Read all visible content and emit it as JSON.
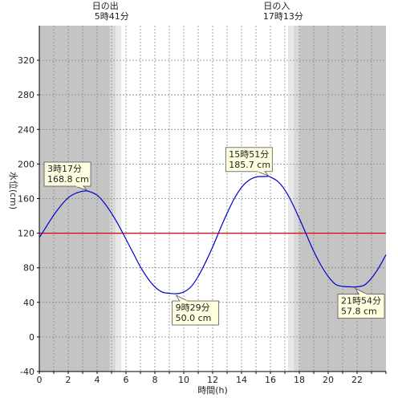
{
  "chart_data": {
    "type": "line",
    "xlabel": "時間(h)",
    "ylabel": "水位(cm)",
    "xlim": [
      0,
      24
    ],
    "ylim": [
      -40,
      360
    ],
    "x_ticks": [
      0,
      2,
      4,
      6,
      8,
      10,
      12,
      14,
      16,
      18,
      20,
      22
    ],
    "y_ticks": [
      -40,
      0,
      40,
      80,
      120,
      160,
      200,
      240,
      280,
      320
    ],
    "grid": true,
    "reference_line": {
      "y": 120,
      "color": "#e00000"
    },
    "series": [
      {
        "color": "#0000cc",
        "x": [
          0,
          0.5,
          1,
          1.5,
          2,
          2.5,
          3,
          3.28,
          3.5,
          4,
          4.5,
          5,
          5.5,
          6,
          6.5,
          7,
          7.5,
          8,
          8.5,
          9,
          9.48,
          10,
          10.5,
          11,
          11.5,
          12,
          12.5,
          13,
          13.5,
          14,
          14.5,
          15,
          15.5,
          15.85,
          16,
          16.5,
          17,
          17.5,
          18,
          18.5,
          19,
          19.5,
          20,
          20.5,
          21,
          21.5,
          21.9,
          22.5,
          23,
          23.5,
          24
        ],
        "y": [
          115,
          128,
          141,
          152,
          161,
          166,
          168.5,
          168.8,
          168,
          164,
          155,
          143,
          129,
          113,
          97,
          81,
          68,
          58,
          52,
          50.5,
          50,
          52,
          58,
          70,
          86,
          104,
          124,
          143,
          160,
          173,
          181,
          185,
          185.5,
          185.7,
          185,
          180,
          170,
          155,
          137,
          118,
          99,
          83,
          70,
          61,
          58.5,
          58,
          57.8,
          60,
          68,
          80,
          95
        ]
      }
    ],
    "sun": {
      "sunrise_label": "日の出",
      "sunrise_time": "5時41分",
      "sunrise_hour": 5.683,
      "sunset_label": "日の入",
      "sunset_time": "17時13分",
      "sunset_hour": 17.217,
      "night_color": "#c4c4c4",
      "twilight_colors": [
        "#d8d8d8",
        "#e8e8e8"
      ]
    },
    "annotations": [
      {
        "x": 3.28,
        "y": 168.8,
        "time": "3時17分",
        "value": "168.8 cm",
        "position": "above"
      },
      {
        "x": 9.48,
        "y": 50.0,
        "time": "9時29分",
        "value": "50.0 cm",
        "position": "below"
      },
      {
        "x": 15.85,
        "y": 185.7,
        "time": "15時51分",
        "value": "185.7 cm",
        "position": "above"
      },
      {
        "x": 21.9,
        "y": 57.8,
        "time": "21時54分",
        "value": "57.8 cm",
        "position": "below"
      }
    ]
  }
}
